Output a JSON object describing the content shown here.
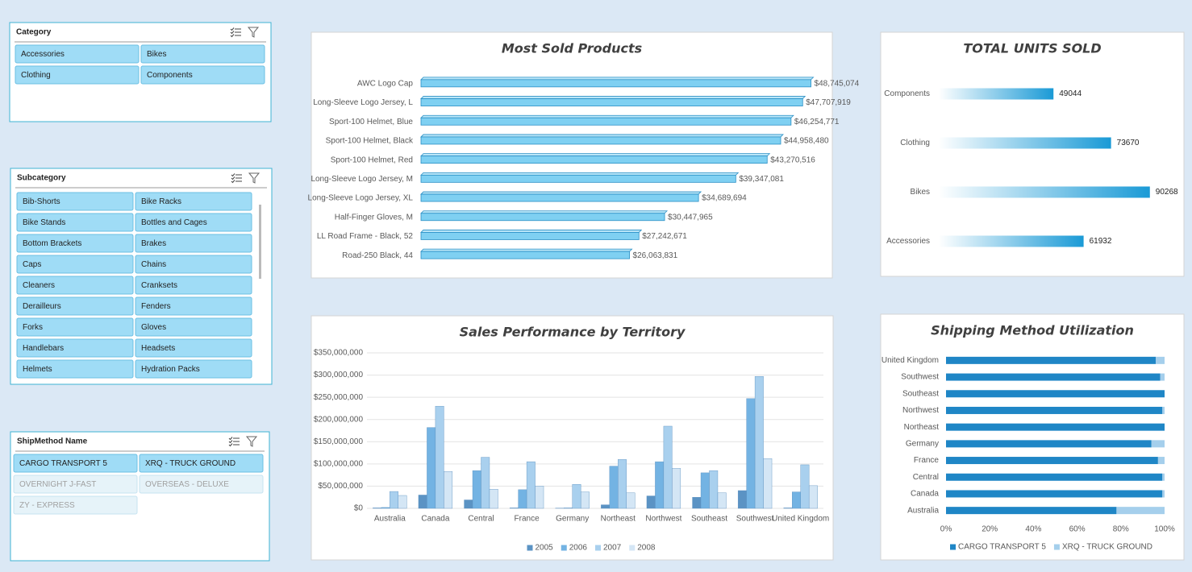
{
  "slicers": [
    {
      "title": "Category",
      "items": [
        {
          "label": "Accessories",
          "selected": true
        },
        {
          "label": "Bikes",
          "selected": true
        },
        {
          "label": "Clothing",
          "selected": true
        },
        {
          "label": "Components",
          "selected": true
        }
      ]
    },
    {
      "title": "Subcategory",
      "items": [
        {
          "label": "Bib-Shorts",
          "selected": true
        },
        {
          "label": "Bike Racks",
          "selected": true
        },
        {
          "label": "Bike Stands",
          "selected": true
        },
        {
          "label": "Bottles and Cages",
          "selected": true
        },
        {
          "label": "Bottom Brackets",
          "selected": true
        },
        {
          "label": "Brakes",
          "selected": true
        },
        {
          "label": "Caps",
          "selected": true
        },
        {
          "label": "Chains",
          "selected": true
        },
        {
          "label": "Cleaners",
          "selected": true
        },
        {
          "label": "Cranksets",
          "selected": true
        },
        {
          "label": "Derailleurs",
          "selected": true
        },
        {
          "label": "Fenders",
          "selected": true
        },
        {
          "label": "Forks",
          "selected": true
        },
        {
          "label": "Gloves",
          "selected": true
        },
        {
          "label": "Handlebars",
          "selected": true
        },
        {
          "label": "Headsets",
          "selected": true
        },
        {
          "label": "Helmets",
          "selected": true
        },
        {
          "label": "Hydration Packs",
          "selected": true
        }
      ]
    },
    {
      "title": "ShipMethod Name",
      "items": [
        {
          "label": "CARGO TRANSPORT 5",
          "selected": true
        },
        {
          "label": "XRQ - TRUCK GROUND",
          "selected": true
        },
        {
          "label": "OVERNIGHT J-FAST",
          "selected": false
        },
        {
          "label": "OVERSEAS - DELUXE",
          "selected": false
        },
        {
          "label": "ZY - EXPRESS",
          "selected": false
        }
      ]
    }
  ],
  "chart_data": [
    {
      "type": "hbar3d",
      "title": "Most Sold Products",
      "categories": [
        "AWC Logo Cap",
        "Long-Sleeve Logo Jersey, L",
        "Sport-100 Helmet, Blue",
        "Sport-100 Helmet, Black",
        "Sport-100 Helmet, Red",
        "Long-Sleeve Logo Jersey, M",
        "Long-Sleeve Logo Jersey, XL",
        "Half-Finger Gloves, M",
        "LL Road Frame - Black, 52",
        "Road-250 Black, 44"
      ],
      "values": [
        48745074,
        47707919,
        46254771,
        44958480,
        43270516,
        39347081,
        34689694,
        30447965,
        27242671,
        26063831
      ],
      "value_labels": [
        "$48,745,074",
        "$47,707,919",
        "$46,254,771",
        "$44,958,480",
        "$43,270,516",
        "$39,347,081",
        "$34,689,694",
        "$30,447,965",
        "$27,242,671",
        "$26,063,831"
      ],
      "color": "#7fd0f2",
      "xlim": [
        0,
        50000000
      ]
    },
    {
      "type": "hbar_gradient",
      "title": "TOTAL UNITS SOLD",
      "categories": [
        "Components",
        "Clothing",
        "Bikes",
        "Accessories"
      ],
      "values": [
        49044,
        73670,
        90268,
        61932
      ],
      "color": "#1a9ad6",
      "xlim": [
        0,
        100000
      ]
    },
    {
      "type": "column",
      "title": "Sales Performance by Territory",
      "categories": [
        "Australia",
        "Canada",
        "Central",
        "France",
        "Germany",
        "Northeast",
        "Northwest",
        "Southeast",
        "Southwest",
        "United Kingdom"
      ],
      "series": [
        {
          "name": "2005",
          "color": "#5b93c4",
          "values": [
            1000000,
            30000000,
            19000000,
            1000000,
            500000,
            8000000,
            28000000,
            25000000,
            40000000,
            1000000
          ]
        },
        {
          "name": "2006",
          "color": "#73b3e3",
          "values": [
            2000000,
            182000000,
            85000000,
            42000000,
            1000000,
            95000000,
            105000000,
            80000000,
            247000000,
            37000000
          ]
        },
        {
          "name": "2007",
          "color": "#a9d0ee",
          "values": [
            38000000,
            230000000,
            115000000,
            105000000,
            54000000,
            110000000,
            185000000,
            85000000,
            297000000,
            98000000
          ]
        },
        {
          "name": "2008",
          "color": "#d4e6f5",
          "values": [
            29000000,
            83000000,
            43000000,
            50000000,
            37000000,
            35000000,
            90000000,
            35000000,
            112000000,
            51000000
          ]
        }
      ],
      "ylim": [
        0,
        350000000
      ],
      "yticks": [
        {
          "value": 0,
          "label": "$0"
        },
        {
          "value": 50000000,
          "label": "$50,000,000"
        },
        {
          "value": 100000000,
          "label": "$100,000,000"
        },
        {
          "value": 150000000,
          "label": "$150,000,000"
        },
        {
          "value": 200000000,
          "label": "$200,000,000"
        },
        {
          "value": 250000000,
          "label": "$250,000,000"
        },
        {
          "value": 300000000,
          "label": "$300,000,000"
        },
        {
          "value": 350000000,
          "label": "$350,000,000"
        }
      ],
      "grid": true,
      "legend": "bottom"
    },
    {
      "type": "stacked_hbar_100",
      "title": "Shipping Method Utilization",
      "categories": [
        "United Kingdom",
        "Southwest",
        "Southeast",
        "Northwest",
        "Northeast",
        "Germany",
        "France",
        "Central",
        "Canada",
        "Australia"
      ],
      "series": [
        {
          "name": "CARGO TRANSPORT 5",
          "color": "#1f86c6",
          "values": [
            96,
            98,
            100,
            99,
            100,
            94,
            97,
            99,
            99,
            78
          ]
        },
        {
          "name": "XRQ - TRUCK GROUND",
          "color": "#a5cfec",
          "values": [
            4,
            2,
            0,
            1,
            0,
            6,
            3,
            1,
            1,
            22
          ]
        }
      ],
      "xlim": [
        0,
        100
      ],
      "xticks": [
        {
          "value": 0,
          "label": "0%"
        },
        {
          "value": 20,
          "label": "20%"
        },
        {
          "value": 40,
          "label": "40%"
        },
        {
          "value": 60,
          "label": "60%"
        },
        {
          "value": 80,
          "label": "80%"
        },
        {
          "value": 100,
          "label": "100%"
        }
      ],
      "grid": false,
      "legend": "bottom"
    }
  ]
}
